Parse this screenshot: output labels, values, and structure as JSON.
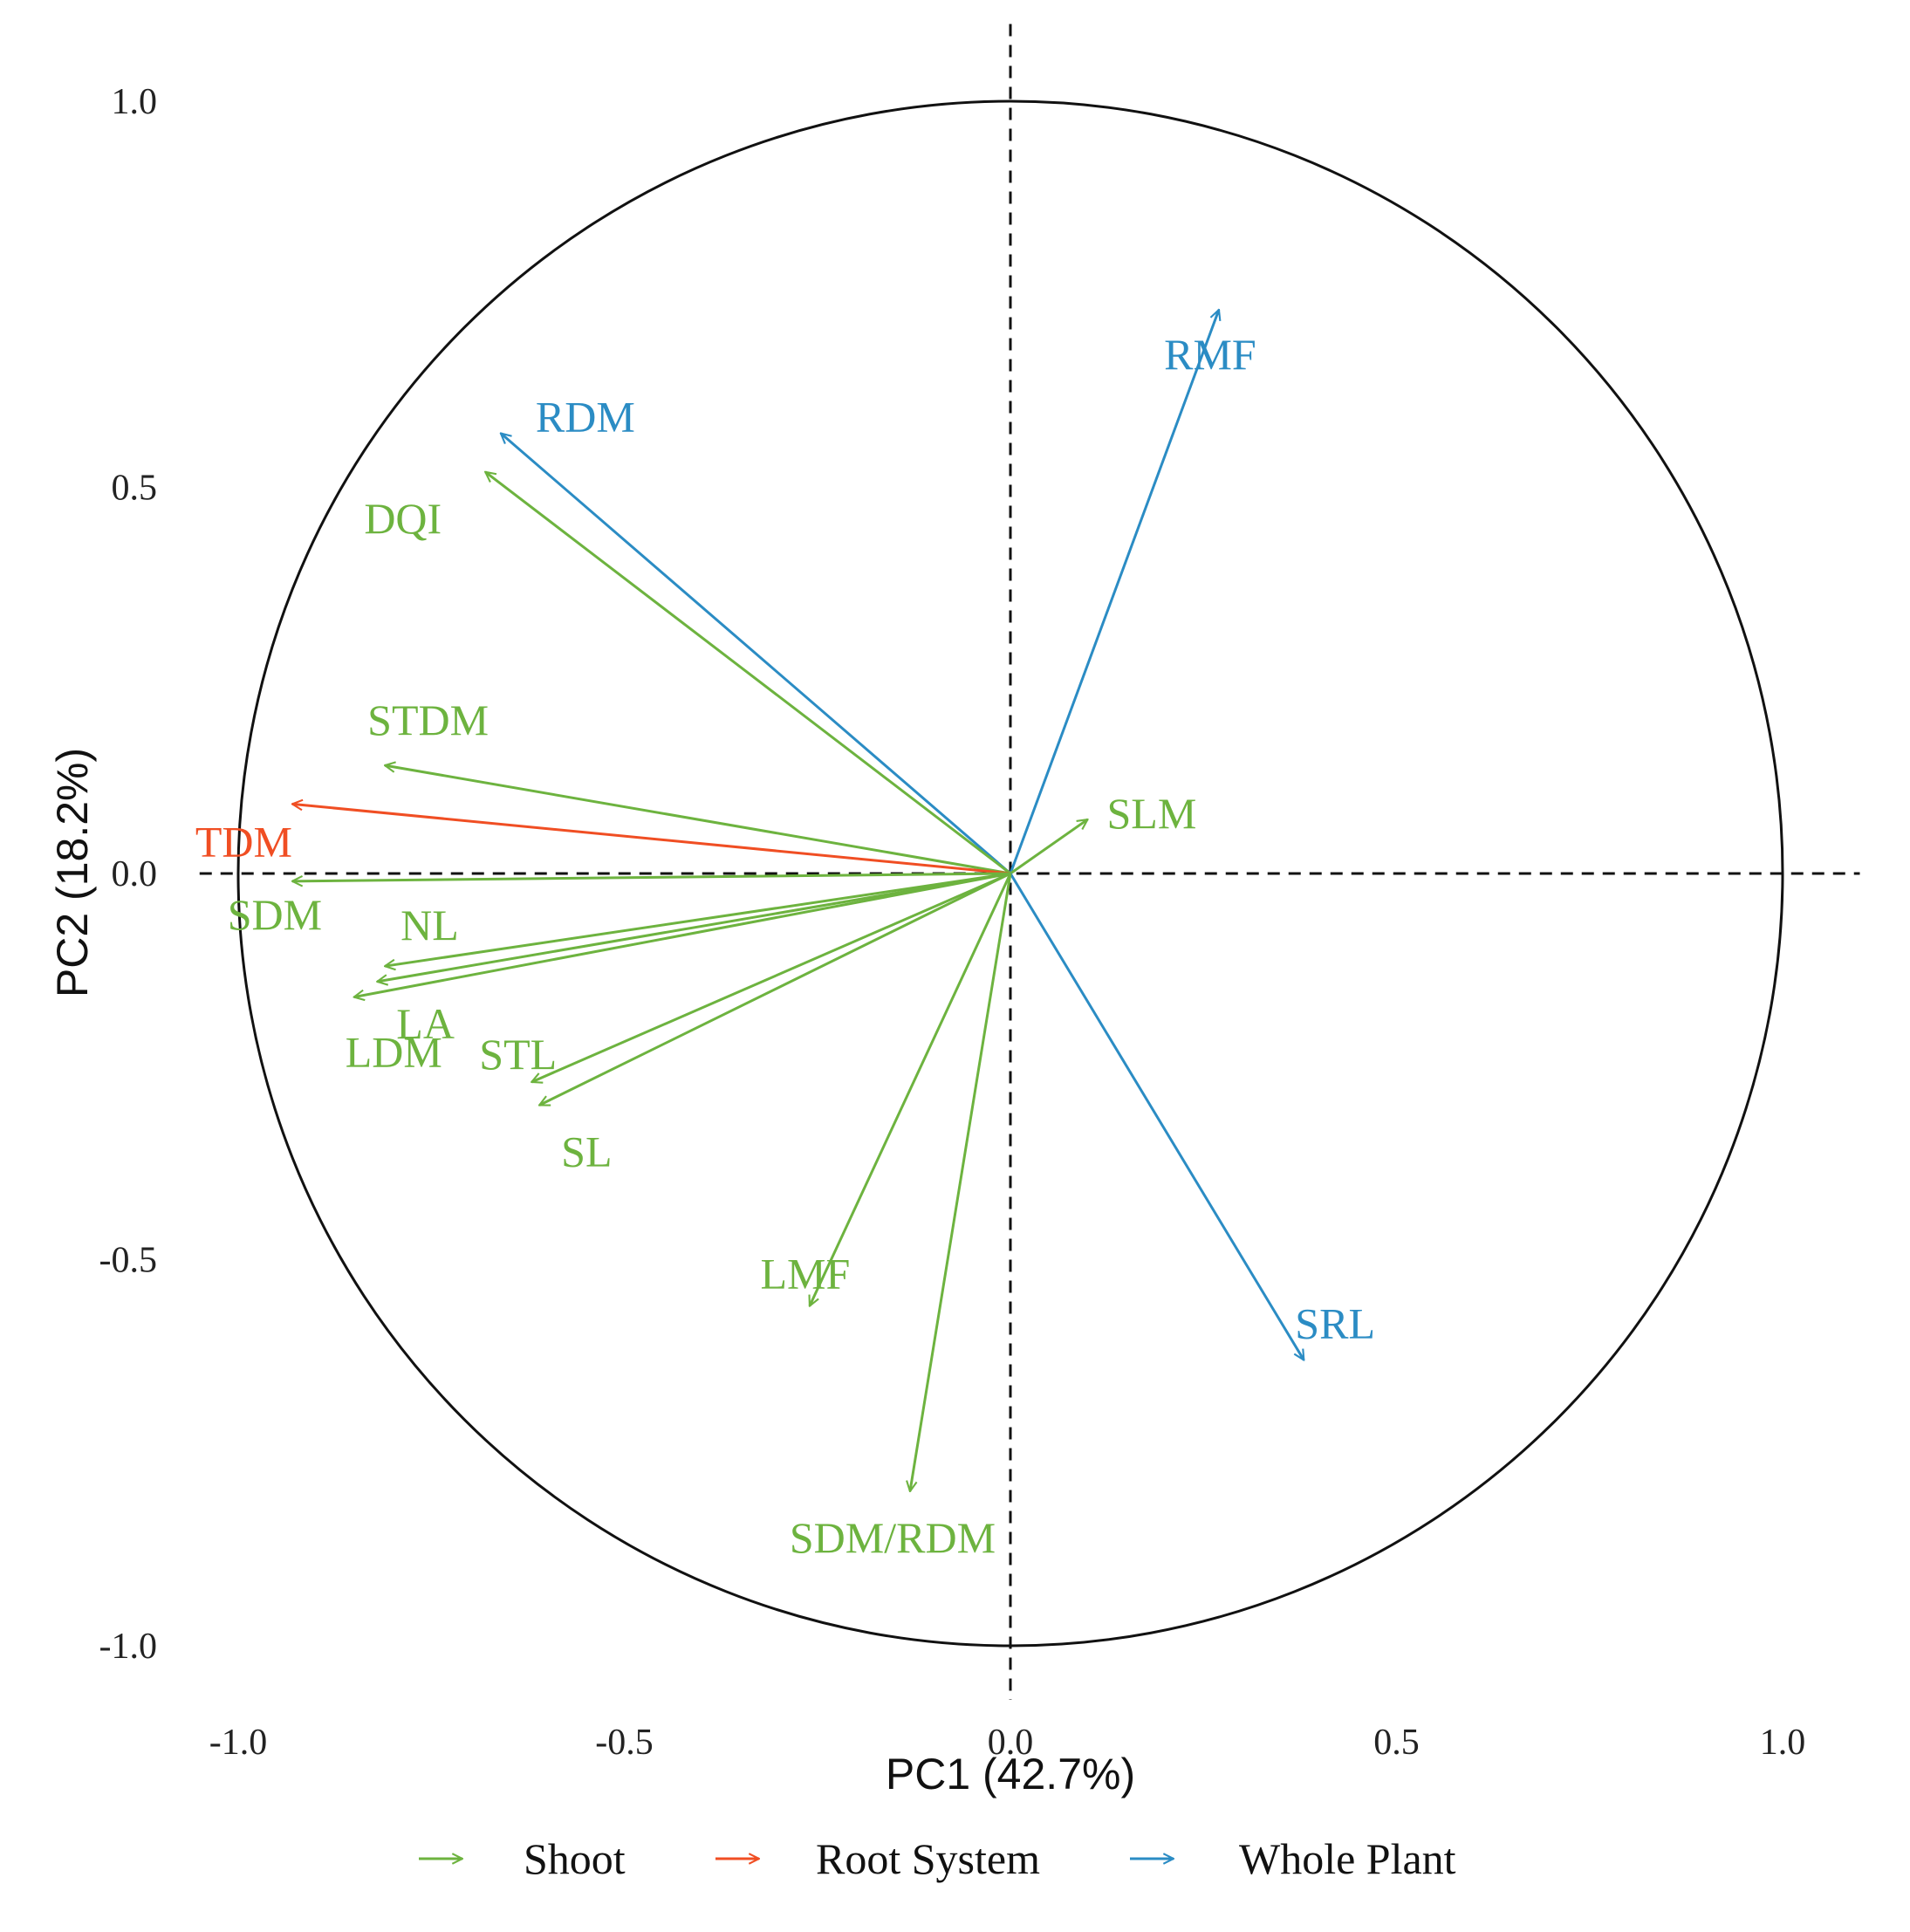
{
  "chart_data": {
    "type": "scatter",
    "subtype": "pca-correlation-circle",
    "title": "",
    "xlabel": "PC1 (42.7%)",
    "ylabel": "PC2 (18.2%)",
    "xlim": [
      -1.1,
      1.1
    ],
    "ylim": [
      -1.1,
      1.1
    ],
    "xticks": [
      "-1.0",
      "-0.5",
      "0.0",
      "0.5",
      "1.0"
    ],
    "yticks": [
      "1.0",
      "0.5",
      "0.0",
      "-0.5",
      "-1.0"
    ],
    "grid": false,
    "unit_circle": true,
    "legend": {
      "placement": "bottom",
      "entries": [
        {
          "name": "Shoot",
          "color": "#6db33f"
        },
        {
          "name": "Root System",
          "color": "#f04e23"
        },
        {
          "name": "Whole Plant",
          "color": "#2b8cc4"
        }
      ]
    },
    "vectors": [
      {
        "label": "RMF",
        "group": "Whole Plant",
        "x": 0.27,
        "y": 0.73
      },
      {
        "label": "RDM",
        "group": "Whole Plant",
        "x": -0.66,
        "y": 0.57
      },
      {
        "label": "DQI",
        "group": "Shoot",
        "x": -0.68,
        "y": 0.52
      },
      {
        "label": "STDM",
        "group": "Shoot",
        "x": -0.81,
        "y": 0.14
      },
      {
        "label": "TDM",
        "group": "Root System",
        "x": -0.93,
        "y": 0.09
      },
      {
        "label": "SLM",
        "group": "Shoot",
        "x": 0.1,
        "y": 0.07
      },
      {
        "label": "SDM",
        "group": "Shoot",
        "x": -0.93,
        "y": -0.01
      },
      {
        "label": "NL",
        "group": "Shoot",
        "x": -0.81,
        "y": -0.12
      },
      {
        "label": "LA",
        "group": "Shoot",
        "x": -0.82,
        "y": -0.14
      },
      {
        "label": "LDM",
        "group": "Shoot",
        "x": -0.85,
        "y": -0.16
      },
      {
        "label": "STL",
        "group": "Shoot",
        "x": -0.62,
        "y": -0.27
      },
      {
        "label": "SL",
        "group": "Shoot",
        "x": -0.61,
        "y": -0.3
      },
      {
        "label": "LMF",
        "group": "Shoot",
        "x": -0.26,
        "y": -0.56
      },
      {
        "label": "SRL",
        "group": "Whole Plant",
        "x": 0.38,
        "y": -0.63
      },
      {
        "label": "SDM/RDM",
        "group": "Shoot",
        "x": -0.13,
        "y": -0.8
      }
    ]
  }
}
